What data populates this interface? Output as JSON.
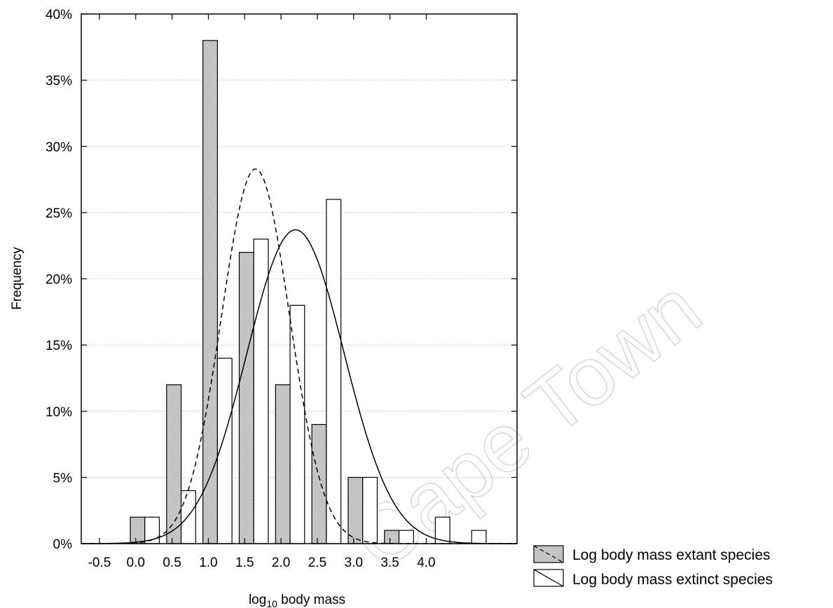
{
  "chart_data": {
    "type": "bar",
    "ylabel": "Frequency",
    "xlabel_main": "log",
    "xlabel_sub": "10",
    "xlabel_rest": " body mass",
    "xlim": [
      -0.75,
      5.25
    ],
    "ylim": [
      0,
      40
    ],
    "y_ticks": [
      {
        "value": 0,
        "label": "0%"
      },
      {
        "value": 5,
        "label": "5%"
      },
      {
        "value": 10,
        "label": "10%"
      },
      {
        "value": 15,
        "label": "15%"
      },
      {
        "value": 20,
        "label": "20%"
      },
      {
        "value": 25,
        "label": "25%"
      },
      {
        "value": 30,
        "label": "30%"
      },
      {
        "value": 35,
        "label": "35%"
      },
      {
        "value": 40,
        "label": "40%"
      }
    ],
    "x_ticks": [
      {
        "value": -0.5,
        "label": "-0.5"
      },
      {
        "value": 0.0,
        "label": "0.0"
      },
      {
        "value": 0.5,
        "label": "0.5"
      },
      {
        "value": 1.0,
        "label": "1.0"
      },
      {
        "value": 1.5,
        "label": "1.5"
      },
      {
        "value": 2.0,
        "label": "2.0"
      },
      {
        "value": 2.5,
        "label": "2.5"
      },
      {
        "value": 3.0,
        "label": "3.0"
      },
      {
        "value": 3.5,
        "label": "3.5"
      },
      {
        "value": 4.0,
        "label": "4.0"
      }
    ],
    "bin_centers": [
      0.125,
      0.625,
      1.125,
      1.625,
      2.125,
      2.625,
      3.125,
      3.625,
      4.125,
      4.625,
      5.125
    ],
    "series": [
      {
        "name": "Log body mass extant species",
        "fill": "#c8c8c8",
        "values": [
          2,
          12,
          38,
          22,
          12,
          9,
          5,
          1,
          0,
          0,
          0
        ],
        "curve": {
          "style": "dashed",
          "mean": 1.65,
          "peak": 28.3,
          "sd": 0.47
        }
      },
      {
        "name": "Log body mass extinct species",
        "fill": "#ffffff",
        "values": [
          2,
          4,
          14,
          23,
          18,
          26,
          5,
          1,
          2,
          1,
          0
        ],
        "curve": {
          "style": "solid",
          "mean": 2.2,
          "peak": 23.7,
          "sd": 0.67
        }
      }
    ],
    "grid": true,
    "legend_position": "bottom-right outside"
  },
  "watermark": "Cape Town"
}
